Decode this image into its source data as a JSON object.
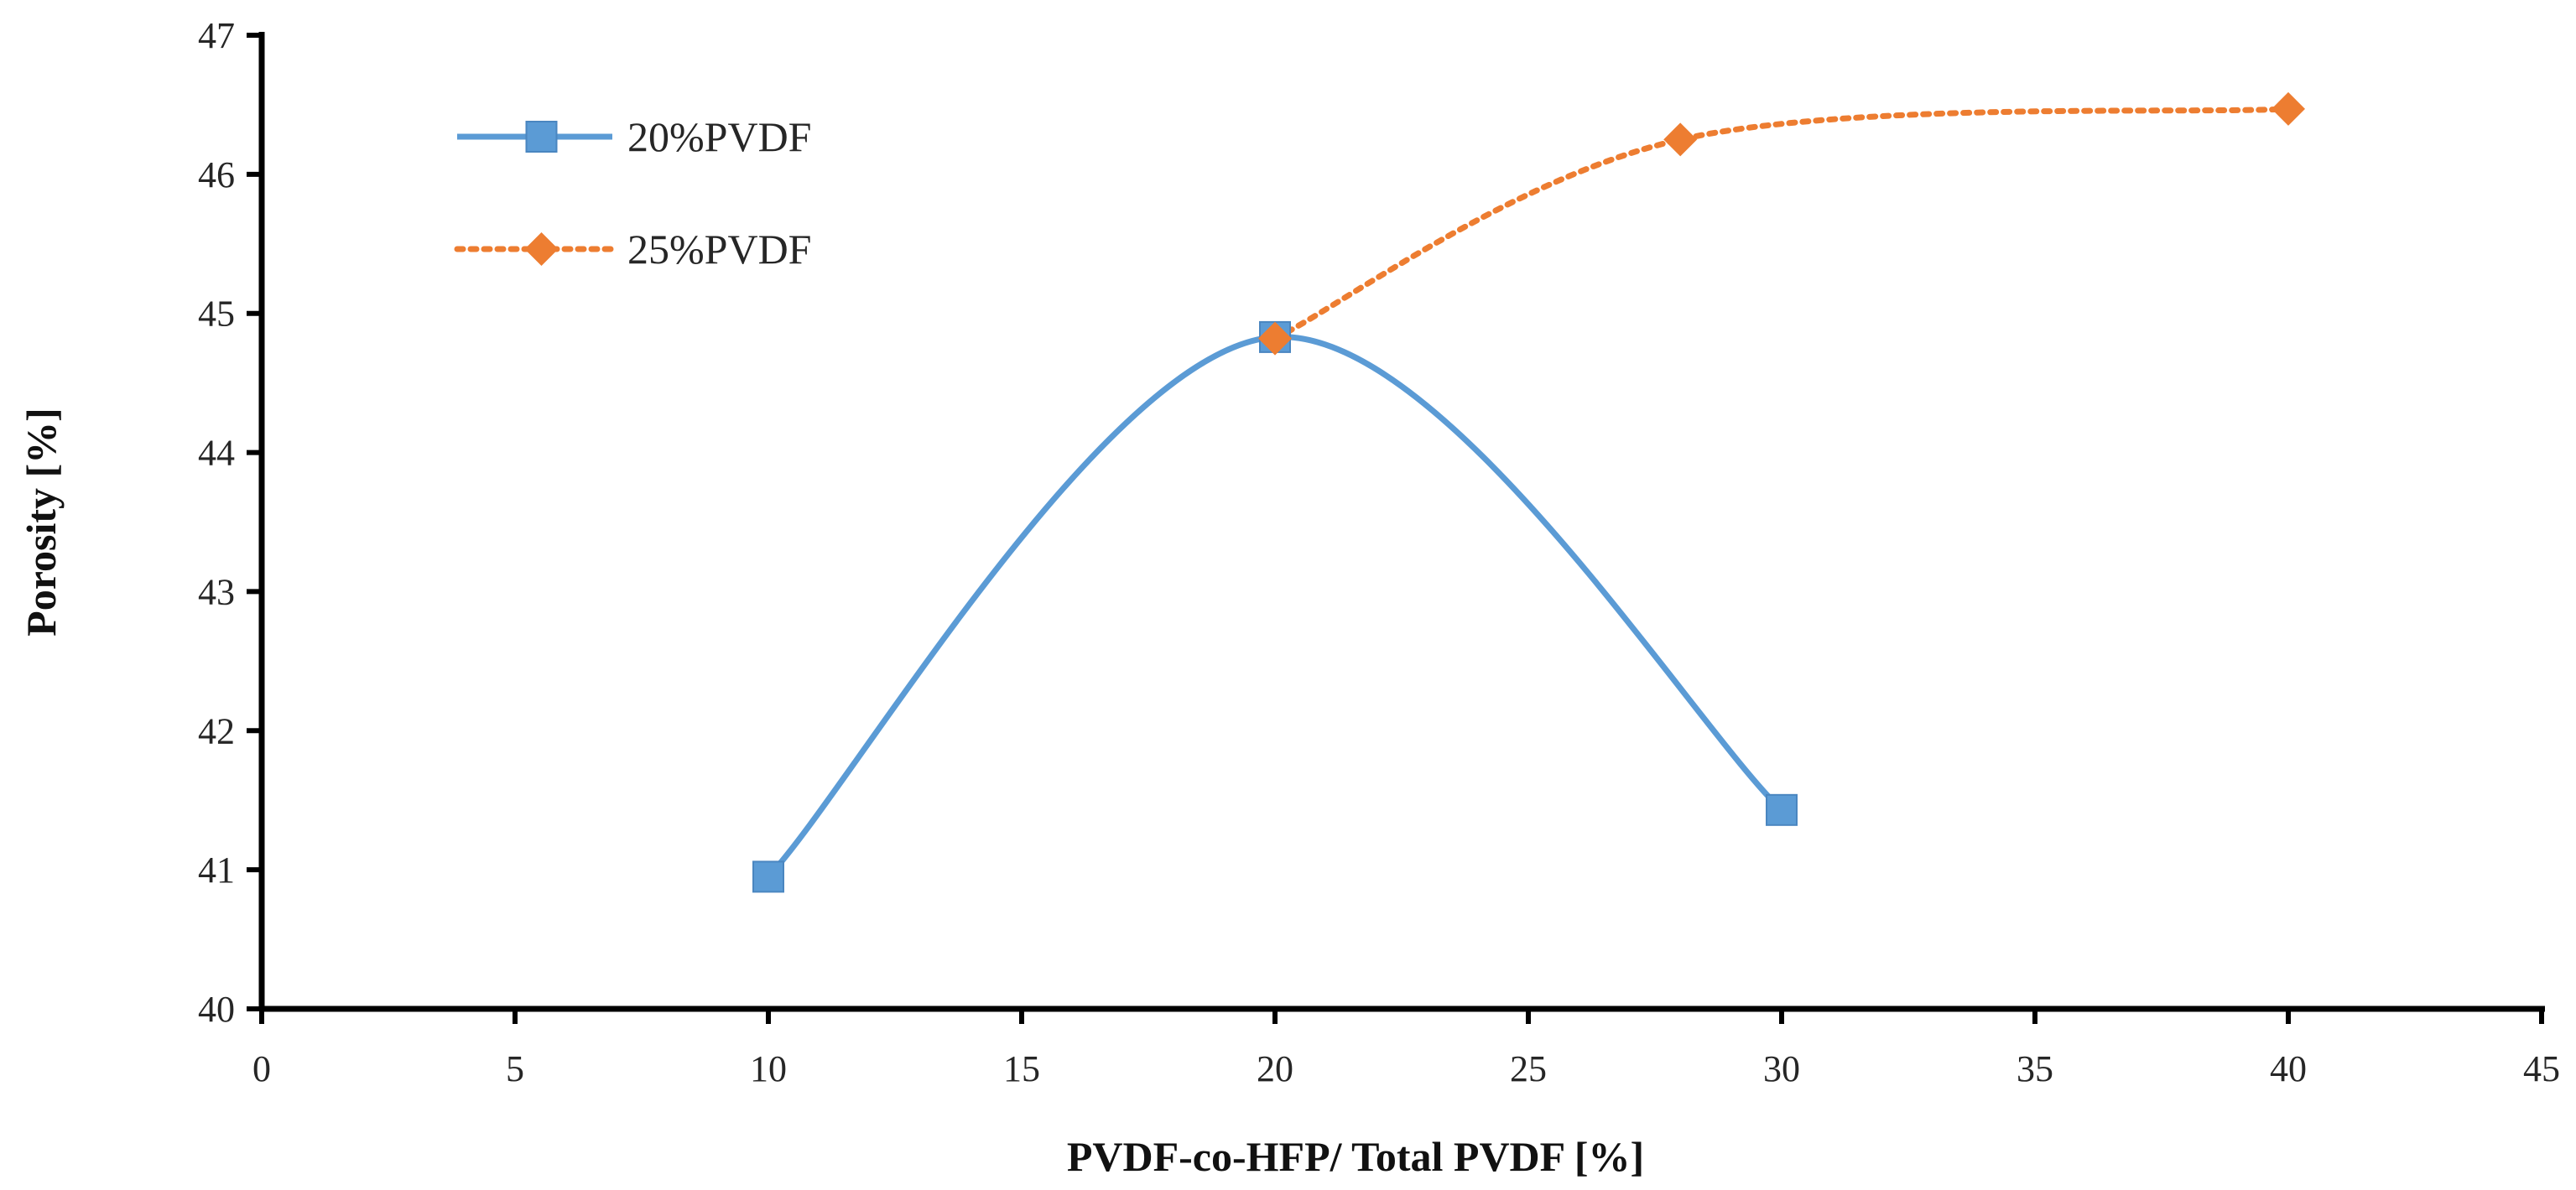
{
  "chart_data": {
    "type": "scatter",
    "title": "",
    "xlabel": "PVDF-co-HFP/ Total PVDF [%]",
    "ylabel": "Porosity [%]",
    "xlim": [
      0,
      45
    ],
    "ylim": [
      40,
      47
    ],
    "xticks": [
      0,
      5,
      10,
      15,
      20,
      25,
      30,
      35,
      40,
      45
    ],
    "yticks": [
      40,
      41,
      42,
      43,
      44,
      45,
      46,
      47
    ],
    "grid": false,
    "legend_position": "top-left",
    "series": [
      {
        "name": "20%PVDF",
        "marker": "square",
        "line": "solid-smooth",
        "color": "#5b9bd5",
        "x": [
          10,
          20,
          30
        ],
        "y": [
          40.95,
          44.83,
          41.43
        ]
      },
      {
        "name": "25%PVDF",
        "marker": "diamond",
        "line": "dotted-smooth",
        "color": "#ed7d31",
        "x": [
          20,
          28,
          40
        ],
        "y": [
          44.82,
          46.25,
          46.47
        ]
      }
    ]
  }
}
